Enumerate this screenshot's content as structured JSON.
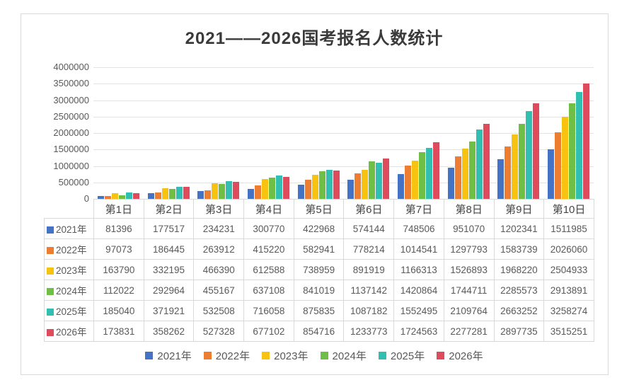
{
  "page": {
    "title": "2021——2026国考报名人数统计"
  },
  "chart_data": {
    "type": "bar",
    "title": "2021——2026国考报名人数统计",
    "xlabel": "",
    "ylabel": "",
    "ylim": [
      0,
      4000000
    ],
    "ytick_step": 500000,
    "yticks": [
      "4000000",
      "3500000",
      "3000000",
      "2500000",
      "2000000",
      "1500000",
      "1000000",
      "500000",
      "0"
    ],
    "grid": true,
    "legend_position": "bottom",
    "data_table_shown": true,
    "categories": [
      "第1日",
      "第2日",
      "第3日",
      "第4日",
      "第5日",
      "第6日",
      "第7日",
      "第8日",
      "第9日",
      "第10日"
    ],
    "series": [
      {
        "name": "2021年",
        "color": "#4472C4",
        "values": [
          81396,
          177517,
          234231,
          300770,
          422968,
          574144,
          748506,
          951070,
          1202341,
          1511985
        ]
      },
      {
        "name": "2022年",
        "color": "#ED7D31",
        "values": [
          97073,
          186445,
          263912,
          415220,
          582941,
          778214,
          1014541,
          1297793,
          1583739,
          2026060
        ]
      },
      {
        "name": "2023年",
        "color": "#F7C210",
        "values": [
          163790,
          332195,
          466390,
          612588,
          738959,
          891919,
          1166313,
          1526893,
          1968220,
          2504933
        ]
      },
      {
        "name": "2024年",
        "color": "#6FBE45",
        "values": [
          112022,
          292964,
          455167,
          637108,
          841019,
          1137142,
          1420864,
          1744711,
          2285573,
          2913891
        ]
      },
      {
        "name": "2025年",
        "color": "#30BFB0",
        "values": [
          185040,
          371921,
          532508,
          716058,
          875835,
          1087182,
          1552495,
          2109764,
          2663252,
          3258274
        ]
      },
      {
        "name": "2026年",
        "color": "#DD4B5C",
        "values": [
          173831,
          358262,
          527328,
          677102,
          854716,
          1233773,
          1724563,
          2277281,
          2897735,
          3515251
        ]
      }
    ]
  },
  "colors": {
    "frame_border": "#dadada",
    "grid_line": "#e3e3e3",
    "axis_text": "#595959",
    "table_border": "#d9d9d9",
    "table_text": "#595959",
    "title_text": "#3a3a3a"
  }
}
